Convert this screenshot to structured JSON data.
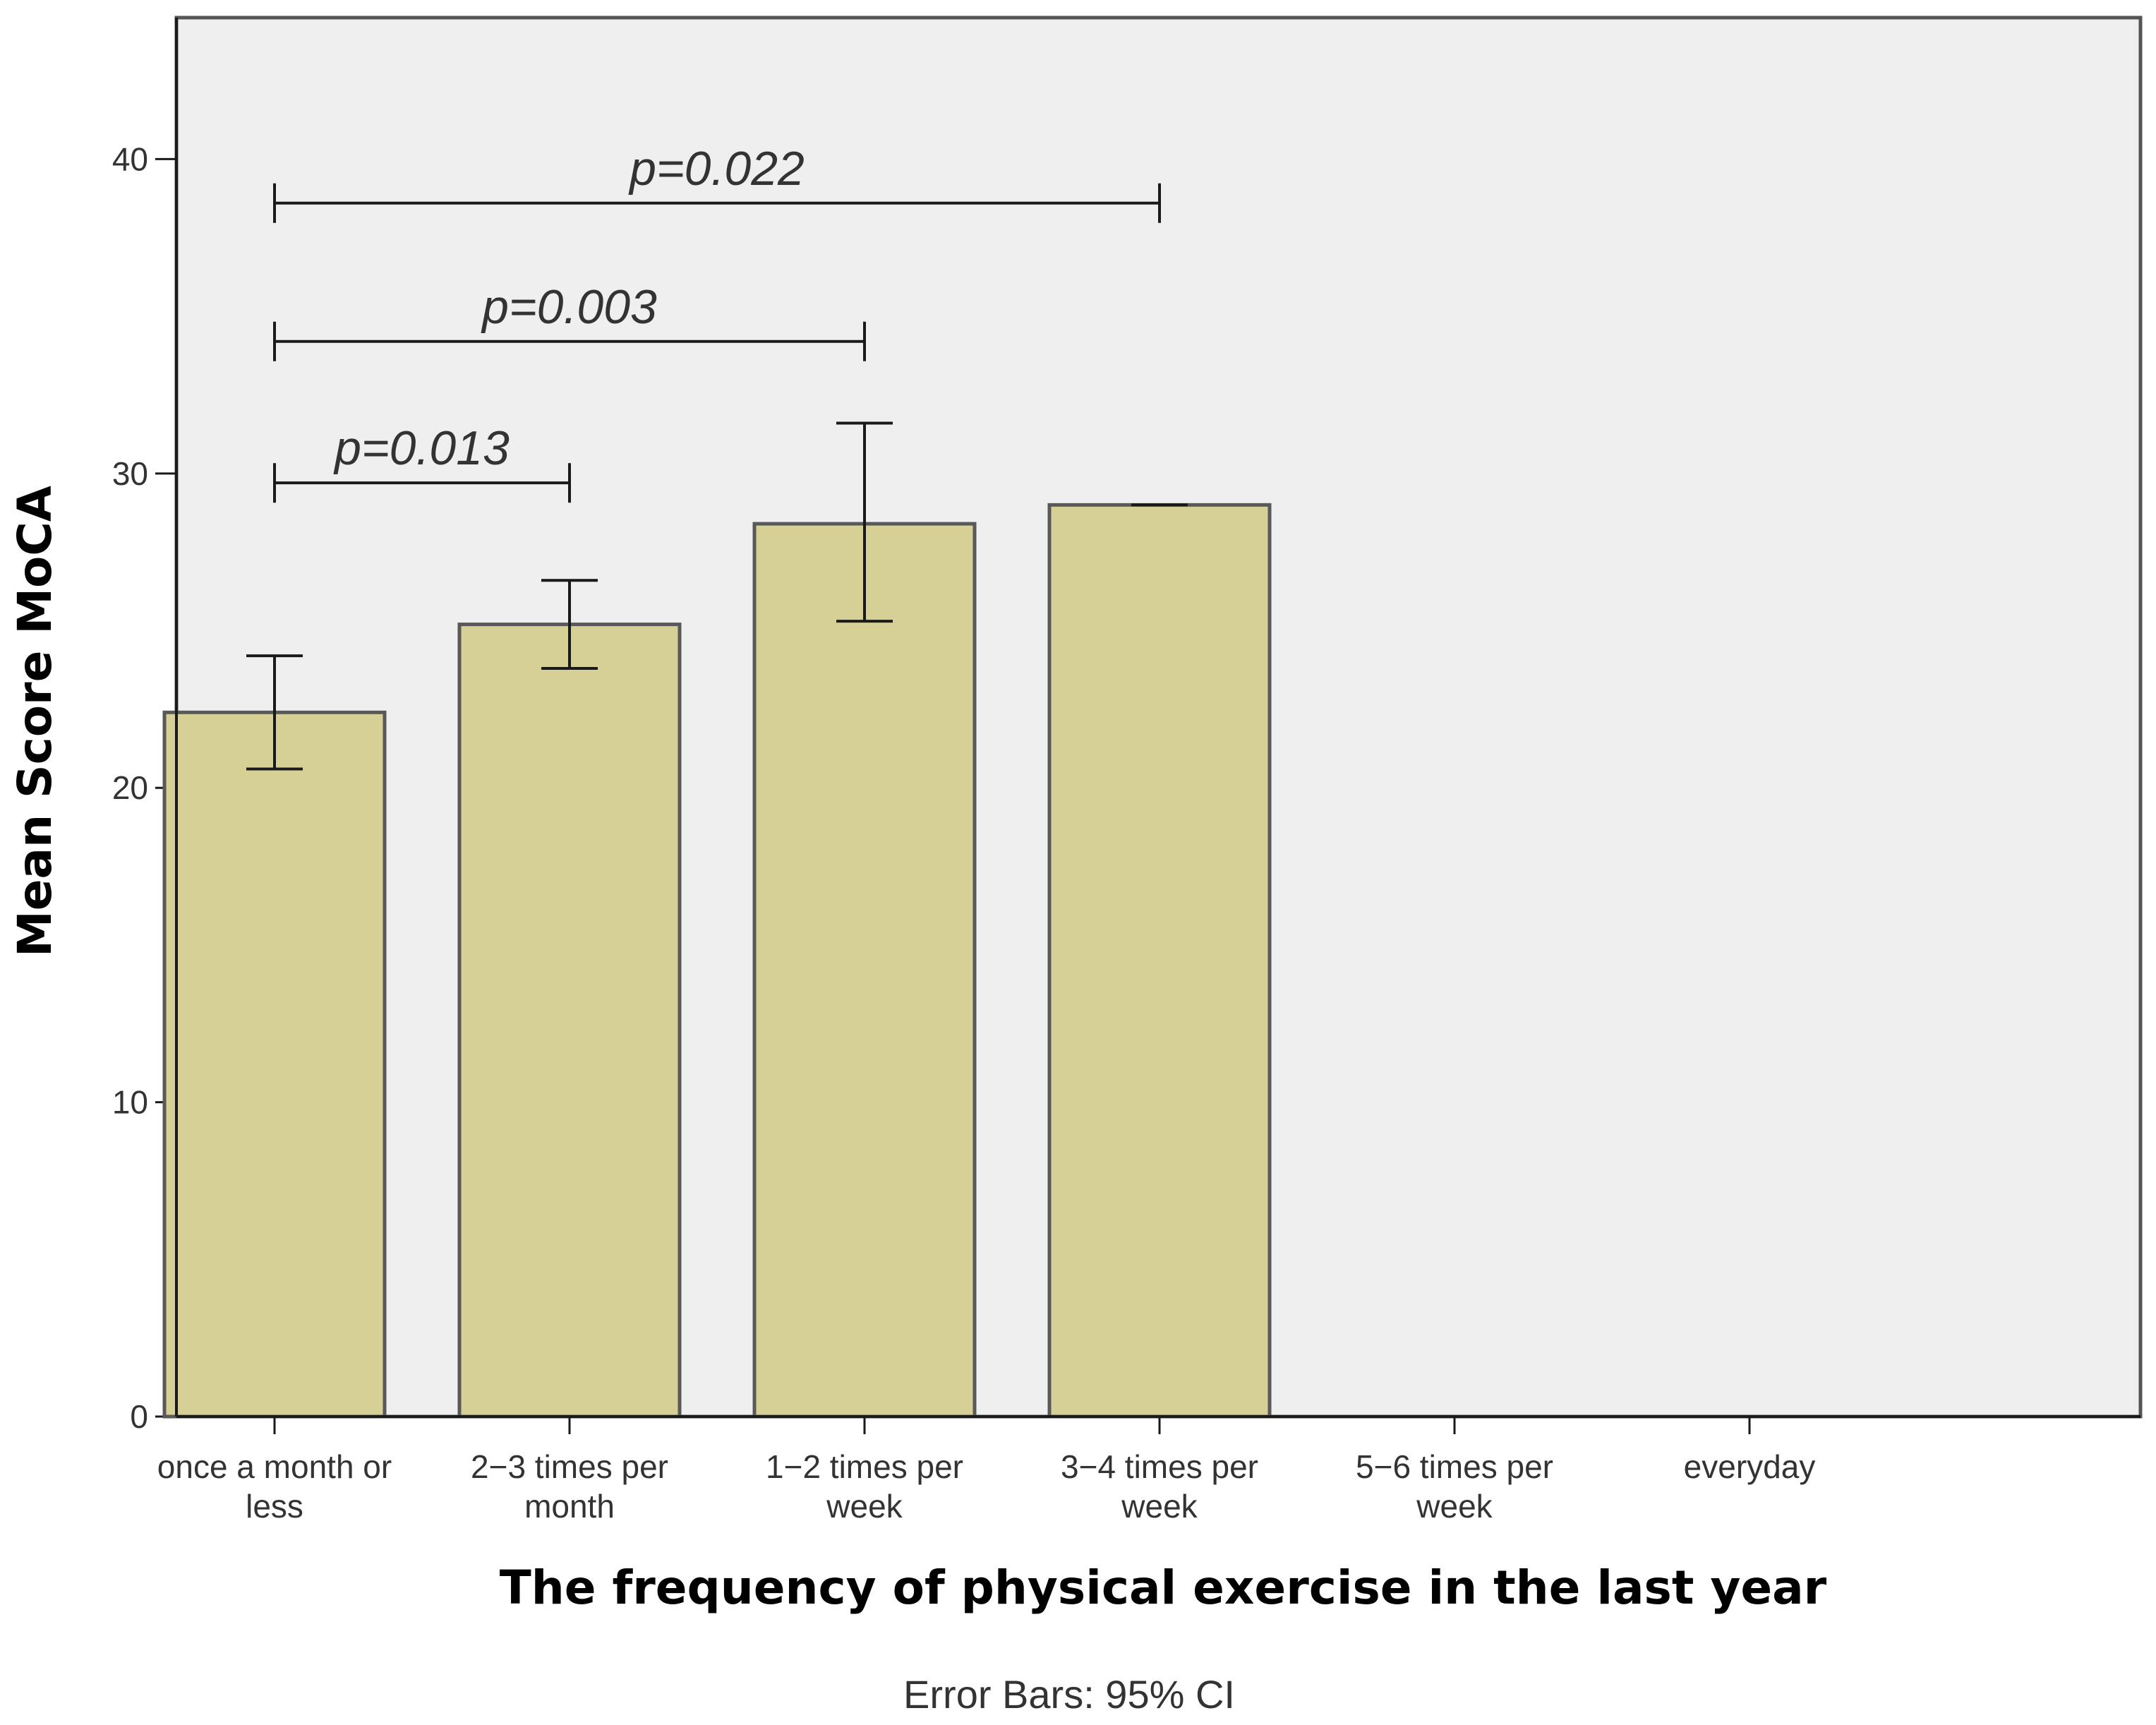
{
  "chart_data": {
    "type": "bar",
    "categories": [
      [
        "once a month or",
        "less"
      ],
      [
        "2−3 times per",
        "month"
      ],
      [
        "1−2 times per",
        "week"
      ],
      [
        "3−4 times per",
        "week"
      ],
      [
        "5−6 times per",
        "week"
      ],
      [
        "everyday"
      ]
    ],
    "values": [
      22.4,
      25.2,
      28.4,
      29.0,
      null,
      null
    ],
    "error_bars": [
      {
        "low": 20.6,
        "high": 24.2
      },
      {
        "low": 23.8,
        "high": 26.6
      },
      {
        "low": 25.3,
        "high": 31.6
      },
      {
        "low": 29.0,
        "high": 29.0
      },
      null,
      null
    ],
    "ylabel": "Mean Score MoCA",
    "xlabel": "The frequency of physical exercise in the last year",
    "ylim": [
      0,
      44.5
    ],
    "yticks": [
      0,
      10,
      20,
      30,
      40
    ],
    "note": "Error Bars: 95% CI",
    "comparisons": [
      {
        "from": 0,
        "to": 1,
        "y": 29.7,
        "label": "p=0.013"
      },
      {
        "from": 0,
        "to": 2,
        "y": 34.2,
        "label": "p=0.003"
      },
      {
        "from": 0,
        "to": 3,
        "y": 38.6,
        "label": "p=0.022"
      }
    ],
    "colors": {
      "bar_fill": "#d6d097",
      "bar_stroke": "#595959",
      "plot_bg": "#efefef",
      "frame": "#555555",
      "line": "#1a1a1a"
    }
  }
}
